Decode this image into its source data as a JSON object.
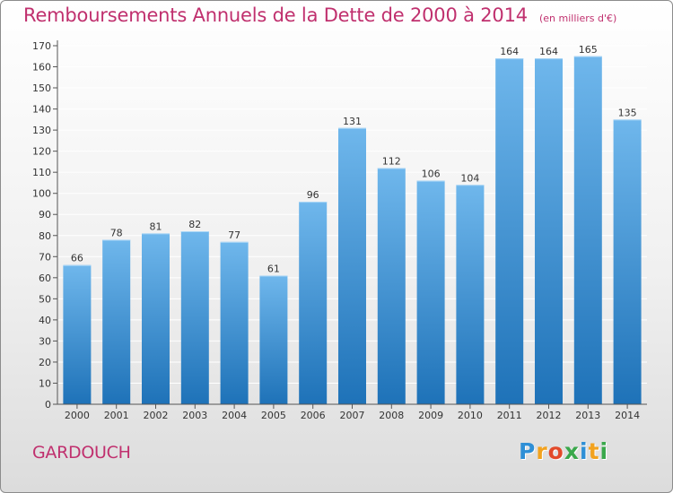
{
  "title": "Remboursements Annuels de la Dette de 2000 à 2014",
  "unit": "(en milliers d'€)",
  "commune": "GARDOUCH",
  "logo": {
    "letters": [
      "P",
      "r",
      "o",
      "x",
      "i",
      "t",
      "i"
    ],
    "colors": [
      "#2e8fd6",
      "#f2a21e",
      "#e24a2a",
      "#3aa84b",
      "#2e8fd6",
      "#f2a21e",
      "#3aa84b"
    ]
  },
  "colors": {
    "bar_top": "#6fb7ec",
    "bar_bottom": "#1e72b8",
    "title": "#c0306e",
    "grid": "#ffffff",
    "axis": "#555555"
  },
  "chart_data": {
    "type": "bar",
    "title": "Remboursements Annuels de la Dette de 2000 à 2014",
    "ylabel": "(en milliers d'€)",
    "xlabel": "",
    "categories": [
      "2000",
      "2001",
      "2002",
      "2003",
      "2004",
      "2005",
      "2006",
      "2007",
      "2008",
      "2009",
      "2010",
      "2011",
      "2012",
      "2013",
      "2014"
    ],
    "values": [
      66,
      78,
      81,
      82,
      77,
      61,
      96,
      131,
      112,
      106,
      104,
      164,
      164,
      165,
      135
    ],
    "ylim": [
      0,
      170
    ],
    "yticks": [
      0,
      10,
      20,
      30,
      40,
      50,
      60,
      70,
      80,
      90,
      100,
      110,
      120,
      130,
      140,
      150,
      160,
      170
    ],
    "grid": true
  }
}
